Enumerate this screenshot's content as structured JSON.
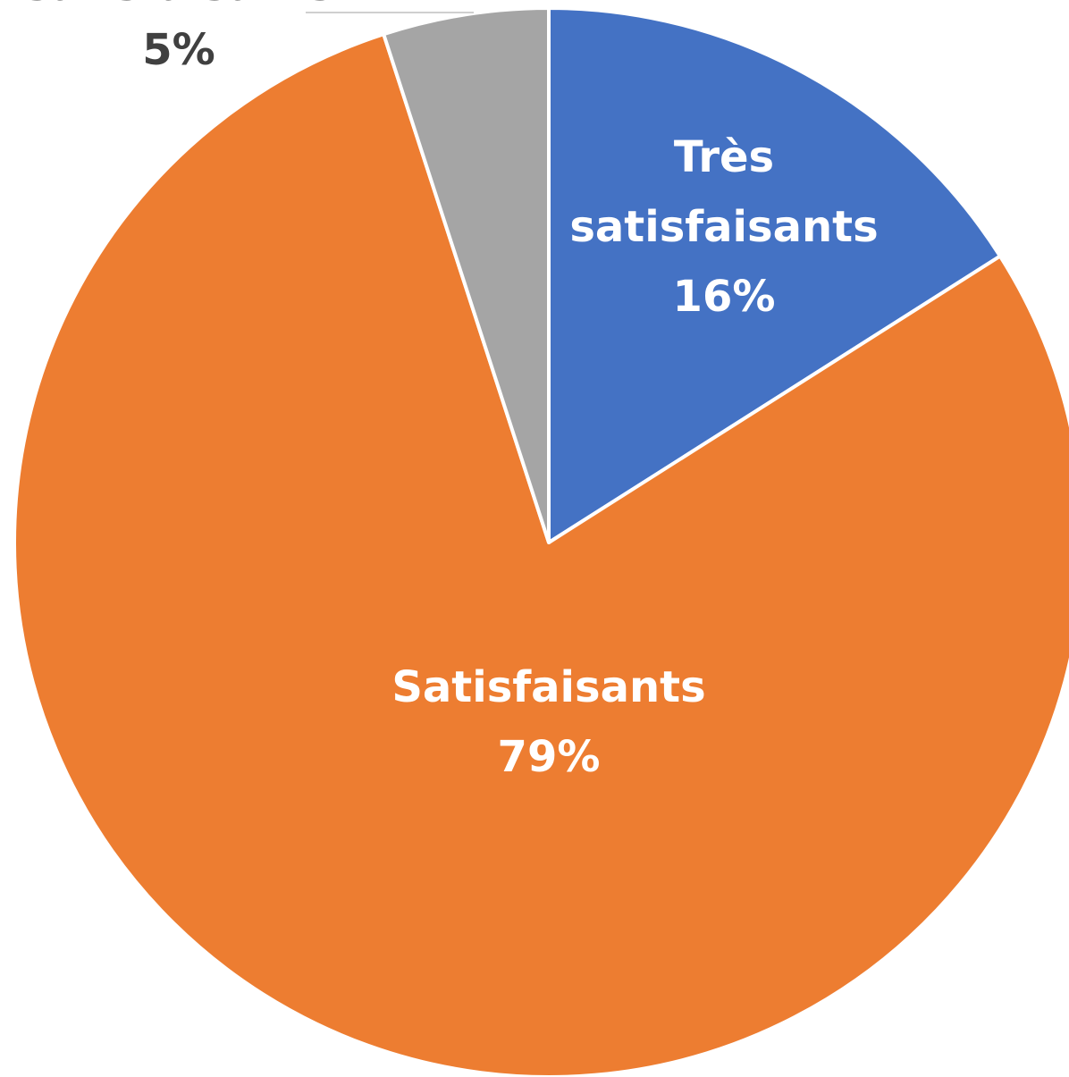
{
  "chart_data": {
    "type": "pie",
    "title": "",
    "slices": [
      {
        "label_lines": [
          "Très",
          "satisfaisants"
        ],
        "value": 16,
        "value_label": "16%",
        "color": "#4472C4",
        "label_color": "#FFFFFF"
      },
      {
        "label_lines": [
          "Satisfaisants"
        ],
        "value": 79,
        "value_label": "79%",
        "color": "#ED7D31",
        "label_color": "#FFFFFF"
      },
      {
        "label_lines": [
          "satisfaisants"
        ],
        "value": 5,
        "value_label": "5%",
        "color": "#A5A5A5",
        "label_color": "#404040"
      }
    ]
  }
}
